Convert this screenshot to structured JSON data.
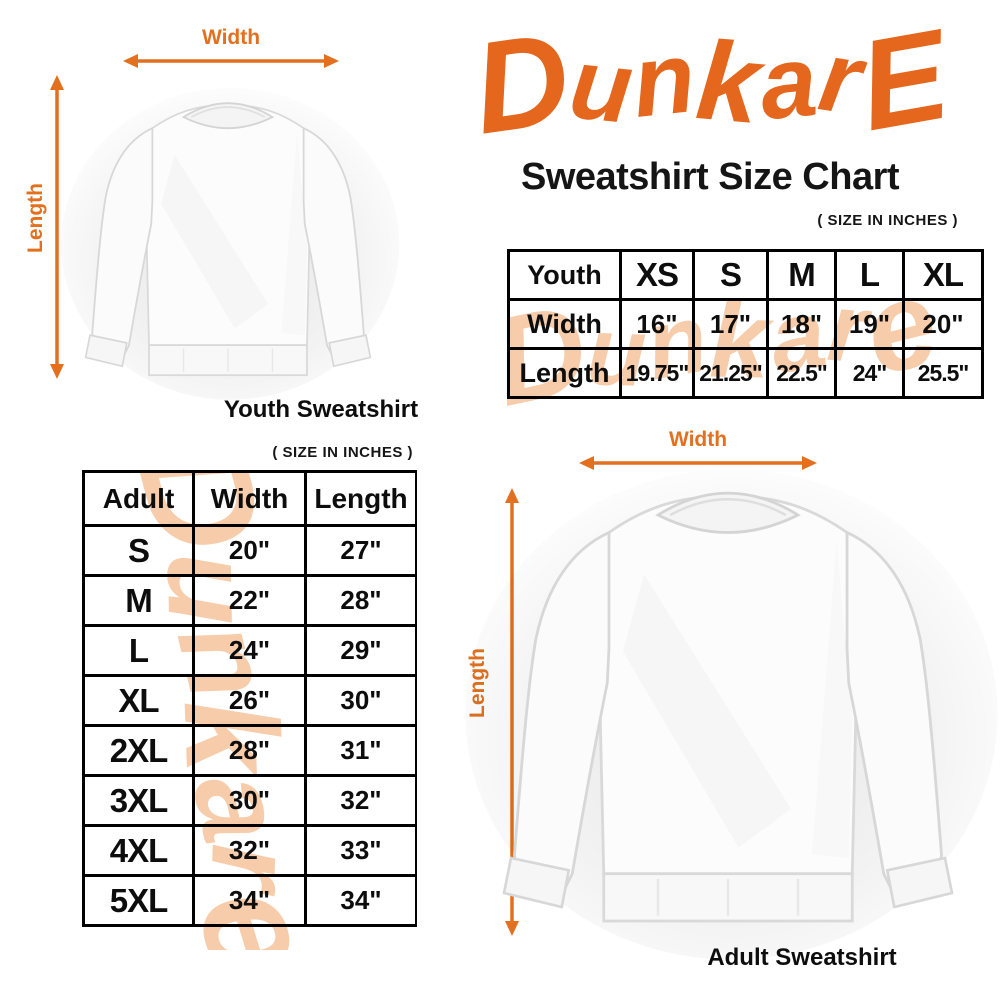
{
  "brand": {
    "logo_text": "DunkarE",
    "title": "Sweatshirt Size Chart"
  },
  "watermark_text": "Dunkare",
  "youth_figure": {
    "width_label": "Width",
    "length_label": "Length",
    "caption": "Youth Sweatshirt"
  },
  "adult_figure": {
    "width_label": "Width",
    "length_label": "Length",
    "caption": "Adult Sweatshirt"
  },
  "youth_table": {
    "size_note": "( SIZE IN INCHES )",
    "header": [
      "Youth",
      "XS",
      "S",
      "M",
      "L",
      "XL"
    ],
    "rows": [
      {
        "label": "Width",
        "values": [
          "16\"",
          "17\"",
          "18\"",
          "19\"",
          "20\""
        ]
      },
      {
        "label": "Length",
        "values": [
          "19.75\"",
          "21.25\"",
          "22.5\"",
          "24\"",
          "25.5\""
        ]
      }
    ]
  },
  "adult_table": {
    "size_note": "( SIZE IN INCHES )",
    "header": [
      "Adult",
      "Width",
      "Length"
    ],
    "rows": [
      {
        "size": "S",
        "width": "20\"",
        "length": "27\""
      },
      {
        "size": "M",
        "width": "22\"",
        "length": "28\""
      },
      {
        "size": "L",
        "width": "24\"",
        "length": "29\""
      },
      {
        "size": "XL",
        "width": "26\"",
        "length": "30\""
      },
      {
        "size": "2XL",
        "width": "28\"",
        "length": "31\""
      },
      {
        "size": "3XL",
        "width": "30\"",
        "length": "32\""
      },
      {
        "size": "4XL",
        "width": "32\"",
        "length": "33\""
      },
      {
        "size": "5XL",
        "width": "34\"",
        "length": "34\""
      }
    ]
  },
  "colors": {
    "accent_orange": "#E5671D",
    "arrow_orange": "#E2701F",
    "watermark_peach": "#F7CCAA",
    "text_black": "#111111"
  }
}
